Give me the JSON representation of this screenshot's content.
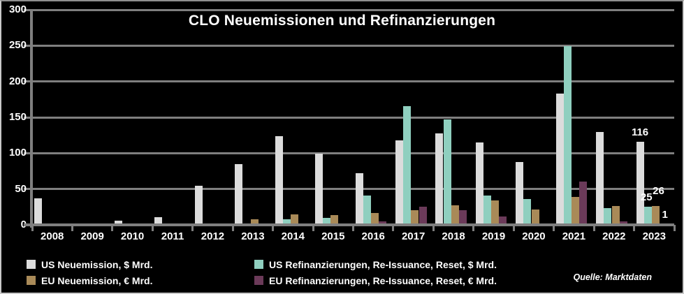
{
  "chart_data": {
    "type": "bar",
    "title": "CLO Neuemissionen und Refinanzierungen",
    "categories": [
      "2008",
      "2009",
      "2010",
      "2011",
      "2012",
      "2013",
      "2014",
      "2015",
      "2016",
      "2017",
      "2018",
      "2019",
      "2020",
      "2021",
      "2022",
      "2023"
    ],
    "series": [
      {
        "name": "US Neuemission, $ Mrd.",
        "color": "#dcdcdc",
        "values": [
          37,
          2,
          6,
          11,
          55,
          85,
          124,
          99,
          72,
          118,
          128,
          115,
          88,
          183,
          130,
          116
        ]
      },
      {
        "name": "US Refinanzierungen, Re-Issuance, Reset, $ Mrd.",
        "color": "#8fcfbf",
        "values": [
          0,
          0,
          0,
          0,
          0,
          0,
          8,
          10,
          41,
          166,
          147,
          41,
          36,
          249,
          23,
          25
        ]
      },
      {
        "name": "EU Neuemission, € Mrd.",
        "color": "#a98a58",
        "values": [
          0,
          0,
          0,
          0,
          0,
          8,
          15,
          14,
          17,
          20,
          27,
          34,
          21,
          39,
          26,
          26
        ]
      },
      {
        "name": "EU Refinanzierungen, Re-Issuance, Reset, € Mrd.",
        "color": "#6b3a59",
        "values": [
          0,
          0,
          0,
          0,
          0,
          0,
          0,
          0,
          5,
          25,
          20,
          12,
          0,
          60,
          5,
          1
        ]
      }
    ],
    "ylim": [
      0,
      300
    ],
    "ytick_step": 50,
    "grid": true,
    "legend_position": "bottom",
    "legend_columns": [
      [
        0,
        2
      ],
      [
        1,
        3
      ]
    ],
    "value_labels": [
      {
        "series": 0,
        "category": "2023",
        "text": "116",
        "dx": 0,
        "dy": 0
      },
      {
        "series": 1,
        "category": "2023",
        "text": "25",
        "dx": -2,
        "dy": 0
      },
      {
        "series": 2,
        "category": "2023",
        "text": "26",
        "dx": 4,
        "dy": -8
      },
      {
        "series": 3,
        "category": "2023",
        "text": "1",
        "dx": 2,
        "dy": 0
      }
    ],
    "source": "Quelle: Marktdaten",
    "colors": {
      "background": "#000000",
      "axis": "#7f7f7f",
      "text": "#ffffff"
    }
  }
}
